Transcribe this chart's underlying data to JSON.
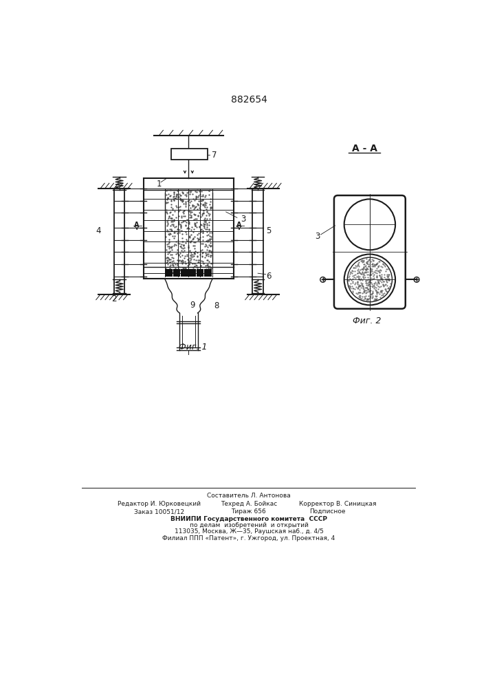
{
  "title": "882654",
  "fig1_label": "Фиг. 1",
  "fig2_label": "Фиг. 2",
  "bg_color": "#ffffff",
  "line_color": "#1a1a1a",
  "footer_line1": "Составитель Л. Антонова",
  "footer_line2_l": "Редактор И. Юрковецкий",
  "footer_line2_m": "Техред А. Бойкас",
  "footer_line2_r": "Корректор В. Синицкая",
  "footer_line3_l": "Заказ 10051/12",
  "footer_line3_m": "Тираж 656",
  "footer_line3_r": "Подписное",
  "footer_line4": "ВНИИПИ Государственного комитета  СССР",
  "footer_line5": "по делам  изобретений  и открытий",
  "footer_line6": "113035, Москва, Ж—35, Раушская наб., д. 4/5",
  "footer_line7": "Филиал ППП «Патент», г. Ужгород, ул. Проектная, 4"
}
